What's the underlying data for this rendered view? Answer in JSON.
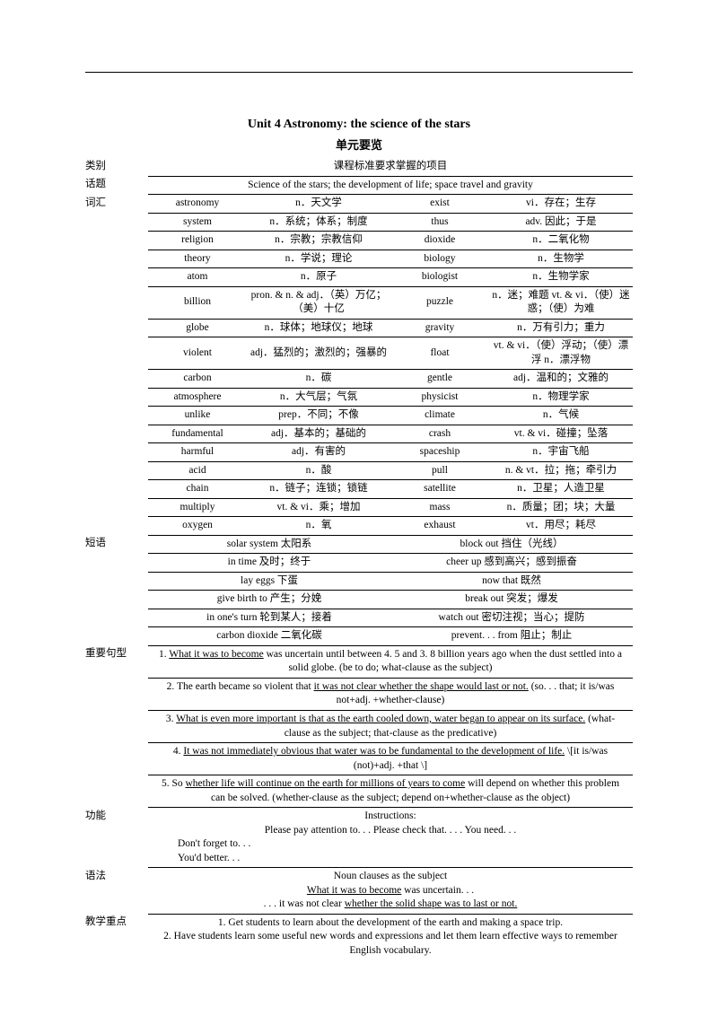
{
  "title": "Unit 4 Astronomy: the science of the stars",
  "subtitle": "单元要览",
  "headerRow": {
    "cat": "类别",
    "desc": "课程标准要求掌握的项目"
  },
  "topic": {
    "cat": "话题",
    "text": "Science of the stars; the development of life; space travel and gravity"
  },
  "vocabCat": "词汇",
  "vocab": [
    {
      "w1": "astronomy",
      "d1": "n．天文学",
      "w2": "exist",
      "d2": "vi．存在；生存"
    },
    {
      "w1": "system",
      "d1": "n．系统；体系；制度",
      "w2": "thus",
      "d2": "adv. 因此；于是"
    },
    {
      "w1": "religion",
      "d1": "n．宗教；宗教信仰",
      "w2": "dioxide",
      "d2": "n．二氧化物"
    },
    {
      "w1": "theory",
      "d1": "n．学说；理论",
      "w2": "biology",
      "d2": "n．生物学"
    },
    {
      "w1": "atom",
      "d1": "n．原子",
      "w2": "biologist",
      "d2": "n．生物学家"
    },
    {
      "w1": "billion",
      "d1": "pron. & n. & adj．（英）万亿；（美）十亿",
      "w2": "puzzle",
      "d2": "n．迷；难题  vt. & vi．（使）迷惑；（使）为难"
    },
    {
      "w1": "globe",
      "d1": "n．球体；地球仪；地球",
      "w2": "gravity",
      "d2": "n．万有引力；重力"
    },
    {
      "w1": "violent",
      "d1": "adj．猛烈的；激烈的；强暴的",
      "w2": "float",
      "d2": "vt. & vi．（使）浮动；（使）漂浮  n．漂浮物"
    },
    {
      "w1": "carbon",
      "d1": "n．碳",
      "w2": "gentle",
      "d2": "adj．温和的；文雅的"
    },
    {
      "w1": "atmosphere",
      "d1": "n．大气层；气氛",
      "w2": "physicist",
      "d2": "n．物理学家"
    },
    {
      "w1": "unlike",
      "d1": "prep．不同；不像",
      "w2": "climate",
      "d2": "n．气候"
    },
    {
      "w1": "fundamental",
      "d1": "adj．基本的；基础的",
      "w2": "crash",
      "d2": "vt. & vi．碰撞；坠落"
    },
    {
      "w1": "harmful",
      "d1": "adj．有害的",
      "w2": "spaceship",
      "d2": "n．宇宙飞船"
    },
    {
      "w1": "acid",
      "d1": "n．酸",
      "w2": "pull",
      "d2": "n. & vt．拉；拖；牵引力"
    },
    {
      "w1": "chain",
      "d1": "n．链子；连锁；锁链",
      "w2": "satellite",
      "d2": "n．卫星；人造卫星"
    },
    {
      "w1": "multiply",
      "d1": "vt. & vi．乘；增加",
      "w2": "mass",
      "d2": "n．质量；团；块；大量"
    },
    {
      "w1": "oxygen",
      "d1": "n．氧",
      "w2": "exhaust",
      "d2": "vt．用尽；耗尽"
    }
  ],
  "phraseCat": "短语",
  "phrases": [
    {
      "l": "solar system 太阳系",
      "r": "block out 挡住（光线）"
    },
    {
      "l": "in time 及时；终于",
      "r": "cheer up 感到高兴；感到振奋"
    },
    {
      "l": "lay eggs 下蛋",
      "r": "now that 既然"
    },
    {
      "l": "give birth to 产生；分娩",
      "r": "break out 突发；爆发"
    },
    {
      "l": "in one's turn 轮到某人；接着",
      "r": "watch out 密切注视；当心；提防"
    },
    {
      "l": "carbon dioxide 二氧化碳",
      "r": "prevent. . . from 阻止；制止"
    }
  ],
  "sentCat": "重要句型",
  "sentences": [
    {
      "pre": "1. ",
      "u": "What it was to become",
      "mid": " was uncertain until between 4. 5 and 3. 8 billion years ago when the dust settled into a solid globe. (be to do; what-clause as the subject)"
    },
    {
      "pre": "2. The earth became so violent that ",
      "u": "it was not clear whether the shape would last or not.",
      "mid": " (so. . . that; it is/was not+adj. +whether-clause)"
    },
    {
      "pre": "3. ",
      "u": "What is even more important is that as the earth cooled down, water began to appear on its surface.",
      "mid": " (what-clause as the subject; that-clause as the predicative)"
    },
    {
      "pre": "4. ",
      "u": "It was not immediately obvious that water was to be fundamental to the development of life.",
      "mid": " \\[it is/was (not)+adj. +that \\]"
    },
    {
      "pre": "5. So ",
      "u": "whether life will continue on the earth for millions of years to come",
      "mid": " will depend on whether this problem can be solved. (whether-clause as the subject; depend on+whether-clause as the object)"
    }
  ],
  "funcCat": "功能",
  "func": {
    "title": "Instructions:",
    "line1": "Please pay attention to. . .     Please check that. . . .     You need. . .",
    "line2": "Don't forget to. . .",
    "line3": "You'd better. . ."
  },
  "gramCat": "语法",
  "grammar": {
    "title": "Noun clauses as the subject",
    "l1_pre": "",
    "l1_u": "What it was to become",
    "l1_post": " was uncertain. . .",
    "l2_pre": ". . . it was not clear ",
    "l2_u": "whether the solid shape was to last or not.",
    "l2_post": ""
  },
  "keyCat": "教学重点",
  "keypoints": [
    "1. Get students to learn about the development of the earth and making a space trip.",
    "2. Have students learn some useful new words and expressions and let them learn effective ways to remember English vocabulary."
  ]
}
